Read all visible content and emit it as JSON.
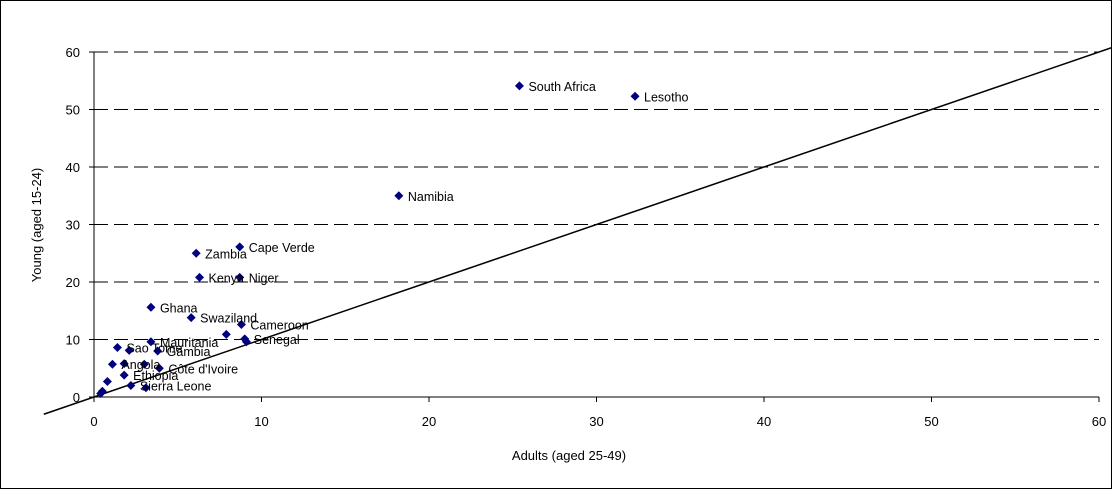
{
  "chart_data": {
    "type": "scatter",
    "title": "",
    "xlabel": "Adults (aged 25-49)",
    "ylabel": "Young (aged 15-24)",
    "xlim": [
      0,
      60
    ],
    "ylim": [
      0,
      60
    ],
    "x_ticks": [
      "0",
      "10",
      "20",
      "30",
      "40",
      "50",
      "60"
    ],
    "y_ticks": [
      "0",
      "10",
      "20",
      "30",
      "40",
      "50",
      "60"
    ],
    "grid": "horizontal dashed",
    "legend": "none",
    "marker_color": "#000080",
    "reference_line": {
      "type": "y = x"
    },
    "points": [
      {
        "label": "South Africa",
        "x": 25.4,
        "y": 54.1
      },
      {
        "label": "Lesotho",
        "x": 32.3,
        "y": 52.3
      },
      {
        "label": "Namibia",
        "x": 18.2,
        "y": 35.0
      },
      {
        "label": "Cape Verde",
        "x": 8.7,
        "y": 26.1
      },
      {
        "label": "Zambia",
        "x": 6.1,
        "y": 25.0
      },
      {
        "label": "Kenya",
        "x": 6.3,
        "y": 20.8
      },
      {
        "label": "Niger",
        "x": 8.7,
        "y": 20.8
      },
      {
        "label": "Ghana",
        "x": 3.4,
        "y": 15.6
      },
      {
        "label": "Swaziland",
        "x": 5.8,
        "y": 13.8
      },
      {
        "label": "Cameroon",
        "x": 8.8,
        "y": 12.6
      },
      {
        "label": "",
        "x": 7.9,
        "y": 10.9
      },
      {
        "label": "Senegal",
        "x": 9.0,
        "y": 10.1
      },
      {
        "label": "",
        "x": 9.1,
        "y": 9.6
      },
      {
        "label": "Mauritania",
        "x": 3.4,
        "y": 9.6
      },
      {
        "label": "Sao Tome",
        "x": 1.4,
        "y": 8.6
      },
      {
        "label": "",
        "x": 2.1,
        "y": 8.1
      },
      {
        "label": "Gambia",
        "x": 3.8,
        "y": 8.0
      },
      {
        "label": "Angola",
        "x": 1.1,
        "y": 5.7
      },
      {
        "label": "",
        "x": 1.8,
        "y": 5.8
      },
      {
        "label": "",
        "x": 3.0,
        "y": 5.7
      },
      {
        "label": "Côte d'Ivoire",
        "x": 3.9,
        "y": 5.0
      },
      {
        "label": "Ethiopia",
        "x": 1.8,
        "y": 3.8
      },
      {
        "label": "",
        "x": 0.8,
        "y": 2.7
      },
      {
        "label": "Sierra Leone",
        "x": 2.2,
        "y": 2.0
      },
      {
        "label": "",
        "x": 3.1,
        "y": 1.6
      },
      {
        "label": "",
        "x": 0.5,
        "y": 1.0
      },
      {
        "label": "",
        "x": 0.4,
        "y": 0.6
      }
    ]
  }
}
